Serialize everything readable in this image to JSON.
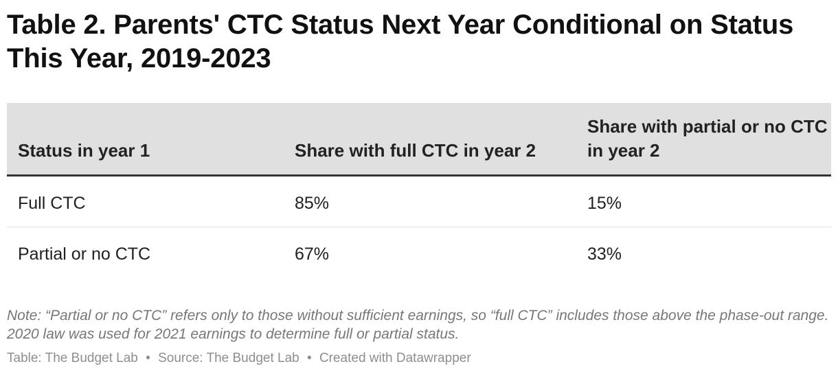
{
  "chart_data": {
    "type": "table",
    "title": "Table 2. Parents' CTC Status Next Year Conditional on Status This Year, 2019-2023",
    "columns": [
      "Status in year 1",
      "Share with full CTC in year 2",
      "Share with partial or no CTC in year 2"
    ],
    "rows": [
      {
        "status": "Full CTC",
        "full": "85%",
        "partial": "15%"
      },
      {
        "status": "Partial or no CTC",
        "full": "67%",
        "partial": "33%"
      }
    ],
    "values": [
      {
        "status": "Full CTC",
        "full_pct": 85,
        "partial_pct": 15
      },
      {
        "status": "Partial or no CTC",
        "full_pct": 67,
        "partial_pct": 33
      }
    ],
    "note": "Note: “Partial or no CTC” refers only to those without sufficient earnings, so “full CTC” includes those above the phase-out range. 2020 law was used for 2021 earnings to determine full or partial status.",
    "footer": {
      "table_credit": "Table: The Budget Lab",
      "source": "Source: The Budget Lab",
      "created_with": "Created with Datawrapper",
      "separator": "•"
    }
  },
  "colors": {
    "header_bg": "#e0e0e0",
    "header_rule": "#333333",
    "row_divider": "#e3e3e3",
    "note_text": "#777777",
    "footer_text": "#8e8e8e"
  }
}
